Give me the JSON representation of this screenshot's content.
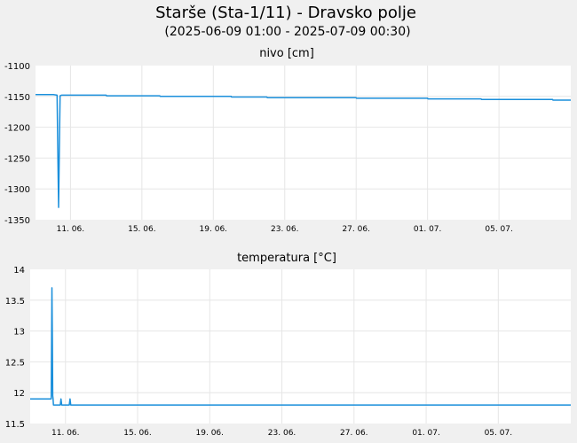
{
  "header": {
    "title": "Starše (Sta-1/11) - Dravsko polje",
    "subtitle": "(2025-06-09 01:00 - 2025-07-09 00:30)"
  },
  "colors": {
    "line": "#1a8fdb",
    "plot_bg": "#ffffff",
    "page_bg": "#f0f0f0",
    "grid": "#e6e6e6"
  },
  "chart_data": [
    {
      "type": "line",
      "title": "nivo [cm]",
      "x_start": "2025-06-09 01:00",
      "x_end": "2025-07-09 00:30",
      "ylim": [
        -1350,
        -1100
      ],
      "yticks": [
        -1100,
        -1150,
        -1200,
        -1250,
        -1300,
        -1350
      ],
      "xticks": [
        "11. 06.",
        "15. 06.",
        "19. 06.",
        "23. 06.",
        "27. 06.",
        "01. 07.",
        "05. 07."
      ],
      "xtick_dates": [
        "2025-06-11",
        "2025-06-15",
        "2025-06-19",
        "2025-06-23",
        "2025-06-27",
        "2025-07-01",
        "2025-07-05"
      ],
      "grid": true,
      "series": [
        {
          "x": [
            "2025-06-09 01:00",
            "2025-06-10 01:00",
            "2025-06-10 06:00",
            "2025-06-10 07:00",
            "2025-06-10 08:00",
            "2025-06-10 09:00",
            "2025-06-10 10:00",
            "2025-06-10 12:00",
            "2025-06-13 00:00",
            "2025-06-13 00:30",
            "2025-06-16 00:00",
            "2025-06-16 00:30",
            "2025-06-20 00:00",
            "2025-06-20 00:30",
            "2025-06-22 00:00",
            "2025-06-22 00:30",
            "2025-06-27 00:00",
            "2025-06-27 00:30",
            "2025-07-01 00:00",
            "2025-07-01 00:30",
            "2025-07-04 00:00",
            "2025-07-04 00:30",
            "2025-07-08 00:00",
            "2025-07-08 00:30",
            "2025-07-09 00:30"
          ],
          "y": [
            -1147,
            -1147,
            -1148,
            -1236,
            -1330,
            -1240,
            -1149,
            -1148,
            -1148,
            -1149,
            -1149,
            -1150,
            -1150,
            -1151,
            -1151,
            -1152,
            -1152,
            -1153,
            -1153,
            -1154,
            -1154,
            -1155,
            -1155,
            -1156,
            -1156
          ]
        }
      ]
    },
    {
      "type": "line",
      "title": "temperatura [°C]",
      "x_start": "2025-06-09 01:00",
      "x_end": "2025-07-09 00:30",
      "ylim": [
        11.5,
        14
      ],
      "yticks": [
        "14",
        "13.5",
        "13",
        "12.5",
        "12",
        "11.5"
      ],
      "xticks": [
        "11. 06.",
        "15. 06.",
        "19. 06.",
        "23. 06.",
        "27. 06.",
        "01. 07.",
        "05. 07."
      ],
      "xtick_dates": [
        "2025-06-11",
        "2025-06-15",
        "2025-06-19",
        "2025-06-23",
        "2025-06-27",
        "2025-07-01",
        "2025-07-05"
      ],
      "grid": true,
      "series": [
        {
          "x": [
            "2025-06-09 01:00",
            "2025-06-10 05:00",
            "2025-06-10 06:00",
            "2025-06-10 06:30",
            "2025-06-10 07:00",
            "2025-06-10 07:30",
            "2025-06-10 08:00",
            "2025-06-10 10:00",
            "2025-06-10 11:00",
            "2025-06-10 17:00",
            "2025-06-10 18:00",
            "2025-06-10 19:00",
            "2025-06-11 05:00",
            "2025-06-11 06:00",
            "2025-06-11 07:00",
            "2025-07-09 00:30"
          ],
          "y": [
            11.9,
            11.9,
            13.7,
            12.85,
            11.95,
            11.9,
            11.8,
            11.8,
            11.8,
            11.8,
            11.9,
            11.8,
            11.8,
            11.9,
            11.8,
            11.8
          ]
        }
      ]
    }
  ]
}
